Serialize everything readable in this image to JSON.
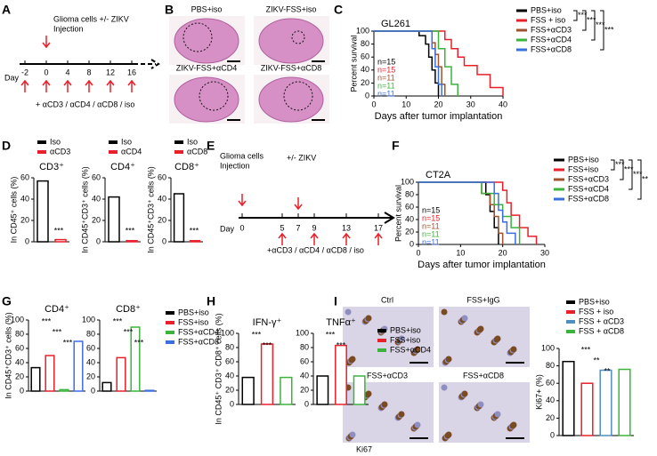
{
  "panels": [
    "A",
    "B",
    "C",
    "D",
    "E",
    "F",
    "G",
    "H",
    "I"
  ],
  "timeline_a": {
    "title": "Glioma cells +/- ZIKV",
    "event": "Injection",
    "day_label": "Day",
    "days": [
      -2,
      0,
      4,
      8,
      12,
      16
    ],
    "treatment": "+ αCD3 / αCD4 / αCD8 / iso"
  },
  "images_b": [
    "PBS+iso",
    "ZIKV-FSS+iso",
    "ZIKV-FSS+αCD4",
    "ZIKV-FSS+αCD8"
  ],
  "timeline_e": {
    "title": "Glioma cells",
    "event": "Injection",
    "virus": "+/- ZIKV",
    "day_label": "Day",
    "days": [
      0,
      5,
      7,
      9,
      13,
      17
    ],
    "treatment": "+αCD3 / αCD4 / αCD8 / iso"
  },
  "images_i": {
    "labels": [
      "Ctrl",
      "FSS+IgG",
      "FSS+αCD3",
      "FSS+αCD8"
    ],
    "stain": "Ki67"
  },
  "chart_data": [
    {
      "type": "survival",
      "title": "GL261",
      "ylabel": "Percent survival",
      "xlabel": "Days after tumor implantation",
      "xlim": [
        0,
        40
      ],
      "xticks": [
        0,
        10,
        20,
        30,
        40
      ],
      "ylim": [
        0,
        100
      ],
      "yticks": [
        0,
        20,
        40,
        60,
        80,
        100
      ],
      "series": [
        {
          "name": "PBS+iso",
          "color": "#000000",
          "n": "n=15",
          "x": [
            0,
            14,
            16,
            17,
            18,
            19,
            20
          ],
          "values": [
            100,
            93,
            80,
            60,
            40,
            20,
            0
          ]
        },
        {
          "name": "FSS + iso",
          "color": "#e8202a",
          "n": "n=15",
          "x": [
            0,
            22,
            24,
            26,
            28,
            32,
            36,
            40
          ],
          "values": [
            100,
            87,
            73,
            60,
            47,
            33,
            13,
            0
          ]
        },
        {
          "name": "FSS+αCD3",
          "color": "#a0522d",
          "n": "n=11",
          "x": [
            0,
            18,
            19,
            20,
            21,
            22
          ],
          "values": [
            100,
            82,
            64,
            45,
            18,
            0
          ]
        },
        {
          "name": "FSS+αCD4",
          "color": "#3cb43c",
          "n": "n=11",
          "x": [
            0,
            20,
            22,
            24,
            26
          ],
          "values": [
            100,
            73,
            45,
            18,
            0
          ]
        },
        {
          "name": "FSS+αCD8",
          "color": "#3a6fe0",
          "n": "n=11",
          "x": [
            0,
            18,
            19,
            20,
            21
          ],
          "values": [
            100,
            73,
            45,
            18,
            0
          ]
        }
      ],
      "significance": [
        "***",
        "***",
        "***",
        "***"
      ]
    },
    {
      "type": "survival",
      "title": "CT2A",
      "ylabel": "Percent survival",
      "xlabel": "Days after tumor implantation",
      "xlim": [
        0,
        30
      ],
      "xticks": [
        0,
        10,
        20,
        30
      ],
      "ylim": [
        0,
        100
      ],
      "yticks": [
        0,
        20,
        40,
        60,
        80,
        100
      ],
      "series": [
        {
          "name": "PBS+iso",
          "color": "#000000",
          "n": "n=15",
          "x": [
            0,
            16,
            17,
            18,
            19
          ],
          "values": [
            100,
            80,
            53,
            27,
            0
          ]
        },
        {
          "name": "FSS+iso",
          "color": "#e8202a",
          "n": "n=15",
          "x": [
            0,
            20,
            21,
            22,
            24,
            26,
            28
          ],
          "values": [
            100,
            87,
            67,
            47,
            27,
            13,
            0
          ]
        },
        {
          "name": "FSS+αCD3",
          "color": "#a0522d",
          "n": "n=11",
          "x": [
            0,
            15,
            17,
            18,
            19,
            20
          ],
          "values": [
            100,
            82,
            64,
            45,
            18,
            0
          ]
        },
        {
          "name": "FSS+αCD4",
          "color": "#3cb43c",
          "n": "n=11",
          "x": [
            0,
            15,
            18,
            20,
            22,
            24
          ],
          "values": [
            100,
            82,
            64,
            45,
            27,
            0
          ]
        },
        {
          "name": "FSS+αCD8",
          "color": "#3a6fe0",
          "n": "n=11",
          "x": [
            0,
            18,
            19,
            20,
            21,
            23
          ],
          "values": [
            100,
            82,
            55,
            36,
            18,
            0
          ]
        }
      ],
      "significance": [
        "***",
        "***",
        "***",
        "**"
      ]
    },
    {
      "type": "bar",
      "title": "CD3⁺",
      "ylabel": "In CD45⁺ cells (%)",
      "categories": [
        "Iso",
        "αCD3"
      ],
      "colors": [
        "#000000",
        "#e8202a"
      ],
      "values": [
        57,
        2
      ],
      "ylim": [
        0,
        60
      ],
      "yticks": [
        0,
        20,
        40,
        60
      ],
      "significance": [
        "***"
      ]
    },
    {
      "type": "bar",
      "title": "CD4⁺",
      "ylabel": "In CD45⁺CD3⁺ cells (%)",
      "categories": [
        "Iso",
        "αCD4"
      ],
      "colors": [
        "#000000",
        "#e8202a"
      ],
      "values": [
        42,
        1
      ],
      "ylim": [
        0,
        60
      ],
      "yticks": [
        0,
        20,
        40,
        60
      ],
      "significance": [
        "***"
      ]
    },
    {
      "type": "bar",
      "title": "CD8⁺",
      "ylabel": "In CD45⁺CD3⁺ cells (%)",
      "categories": [
        "Iso",
        "αCD8"
      ],
      "colors": [
        "#000000",
        "#e8202a"
      ],
      "values": [
        45,
        1
      ],
      "ylim": [
        0,
        60
      ],
      "yticks": [
        0,
        20,
        40,
        60
      ],
      "significance": [
        "***"
      ]
    },
    {
      "type": "bar",
      "title": "CD4⁺",
      "ylabel": "In CD45⁺CD3⁺ cells (%)",
      "colors": [
        "#000000",
        "#e8202a",
        "#3cb43c",
        "#3a6fe0"
      ],
      "values": [
        33,
        50,
        2,
        70
      ],
      "ylim": [
        0,
        100
      ],
      "yticks": [
        0,
        20,
        40,
        60,
        80,
        100
      ],
      "significance": [
        "***",
        "***",
        "***"
      ]
    },
    {
      "type": "bar",
      "title": "CD8⁺",
      "categories": [
        "PBS+iso",
        "FSS+iso",
        "FSS+αCD4",
        "FSS+αCD8"
      ],
      "colors": [
        "#000000",
        "#e8202a",
        "#3cb43c",
        "#3a6fe0"
      ],
      "values": [
        12,
        47,
        90,
        1
      ],
      "ylim": [
        0,
        100
      ],
      "yticks": [
        0,
        20,
        40,
        60,
        80,
        100
      ],
      "significance": [
        "***",
        "***",
        "***"
      ]
    },
    {
      "type": "bar",
      "title": "IFN-γ⁺",
      "ylabel": "In CD45⁺ CD3⁺ CD8⁺ cells (%)",
      "colors": [
        "#000000",
        "#e8202a",
        "#3cb43c"
      ],
      "values": [
        38,
        85,
        38
      ],
      "ylim": [
        0,
        100
      ],
      "yticks": [
        0,
        20,
        40,
        60,
        80,
        100
      ],
      "significance": [
        "***",
        "***"
      ]
    },
    {
      "type": "bar",
      "title": "TNFα⁺",
      "categories": [
        "PBS+iso",
        "FSS+iso",
        "FSS+αCD4"
      ],
      "colors": [
        "#000000",
        "#e8202a",
        "#3cb43c"
      ],
      "values": [
        40,
        83,
        40
      ],
      "ylim": [
        0,
        100
      ],
      "yticks": [
        0,
        20,
        40,
        60,
        80,
        100
      ],
      "significance": [
        "***",
        "***"
      ]
    },
    {
      "type": "bar",
      "ylabel": "Ki67+ (%)",
      "categories": [
        "PBS+iso",
        "FSS + iso",
        "FSS + αCD3",
        "FSS + αCD8"
      ],
      "colors": [
        "#000000",
        "#e8202a",
        "#4f8fc0",
        "#3cb43c"
      ],
      "values": [
        85,
        60,
        75,
        76
      ],
      "ylim": [
        0,
        100
      ],
      "yticks": [
        0,
        20,
        40,
        60,
        80,
        100
      ],
      "significance": [
        "***",
        "**",
        "**"
      ]
    }
  ]
}
